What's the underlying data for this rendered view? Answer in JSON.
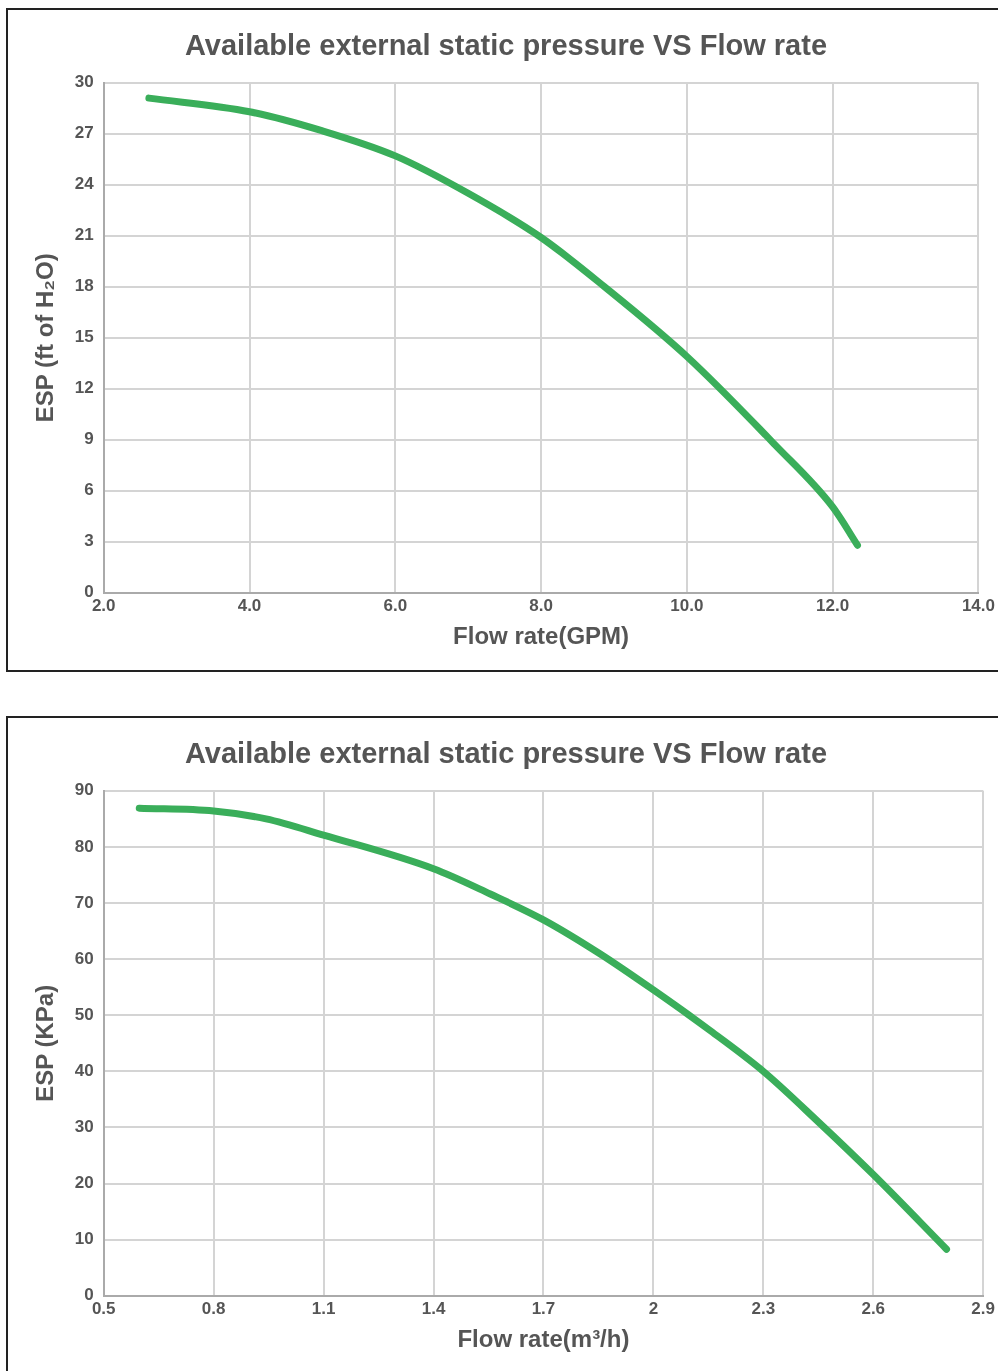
{
  "chart_data": [
    {
      "type": "line",
      "title": "Available external static pressure VS Flow rate",
      "xlabel": "Flow rate(GPM)",
      "ylabel": "ESP (ft of H₂O)",
      "grid": true,
      "legend": false,
      "marker": "none",
      "line_style": "solid",
      "xlim": [
        2,
        14
      ],
      "xticks": [
        {
          "value": 2,
          "label": "2.0"
        },
        {
          "value": 4,
          "label": "4.0"
        },
        {
          "value": 6,
          "label": "6.0"
        },
        {
          "value": 8,
          "label": "8.0"
        },
        {
          "value": 10,
          "label": "10.0"
        },
        {
          "value": 12,
          "label": "12.0"
        },
        {
          "value": 14,
          "label": "14.0"
        }
      ],
      "ylim": [
        0,
        30
      ],
      "yticks": [
        0,
        3,
        6,
        9,
        12,
        15,
        18,
        21,
        24,
        27,
        30
      ],
      "series": [
        {
          "color": "#3aae5a",
          "x": [
            2.62,
            4.0,
            4.98,
            6.0,
            7.0,
            8.0,
            8.87,
            10.0,
            11.21,
            12.0,
            12.34
          ],
          "values": [
            29.1,
            28.3,
            27.2,
            25.7,
            23.5,
            20.9,
            18.0,
            13.9,
            8.7,
            5.05,
            2.8
          ]
        }
      ]
    },
    {
      "type": "line",
      "title": "Available external static pressure VS Flow rate",
      "xlabel": "Flow rate(m³/h)",
      "ylabel": "ESP (KPa)",
      "grid": true,
      "legend": false,
      "marker": "none",
      "line_style": "solid",
      "xlim": [
        0.5,
        2.9
      ],
      "xticks": [
        0.5,
        0.8,
        1.1,
        1.4,
        1.7,
        2,
        2.3,
        2.6,
        2.9
      ],
      "ylim": [
        0,
        90
      ],
      "yticks": [
        0,
        10,
        20,
        30,
        40,
        50,
        60,
        70,
        80,
        90
      ],
      "series": [
        {
          "color": "#3aae5a",
          "x": [
            0.597,
            0.8,
            0.943,
            1.1,
            1.4,
            1.555,
            1.7,
            1.853,
            2.0,
            2.15,
            2.3,
            2.45,
            2.6,
            2.8
          ],
          "values": [
            86.9,
            86.4,
            85.0,
            82.1,
            76.1,
            71.6,
            67.0,
            61.0,
            54.5,
            47.5,
            40.0,
            31.0,
            21.6,
            8.3
          ]
        }
      ]
    }
  ]
}
